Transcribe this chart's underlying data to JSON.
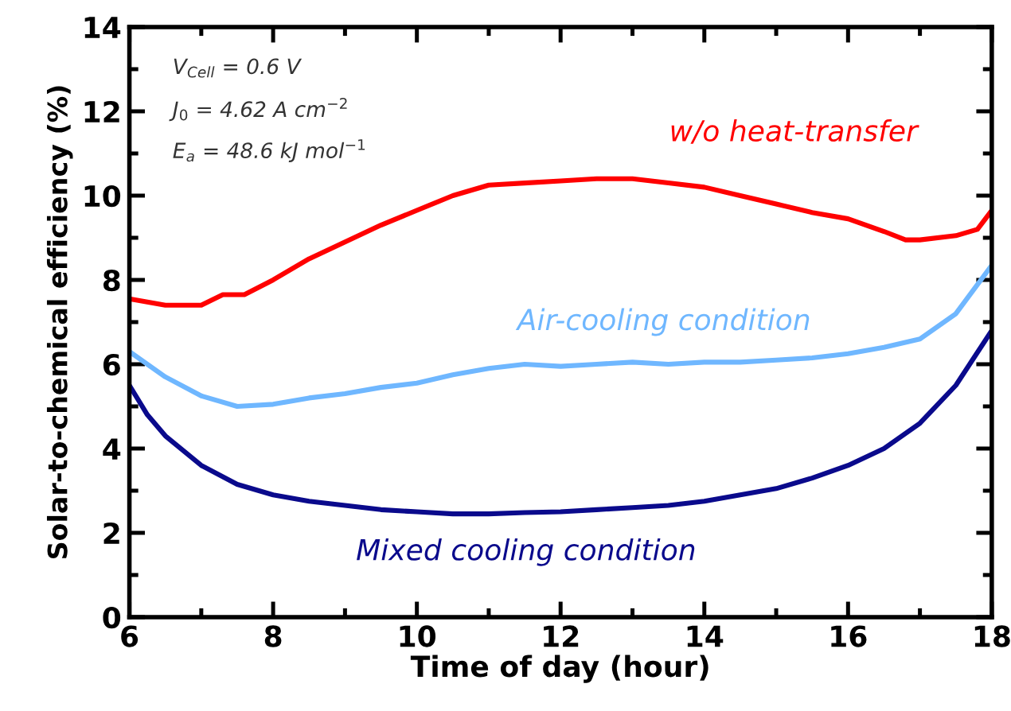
{
  "chart_data": {
    "type": "line",
    "xlabel": "Time of day (hour)",
    "ylabel": "Solar-to-chemical efficiency (%)",
    "annotations": [
      "V$_{Cell}$ = 0.6 V",
      "J$_{0}$ = 4.62 A cm$^{−2}$",
      "E$_{a}$ = 48.6 kJ mol$^{−1}$"
    ],
    "series": [
      {
        "name": "w/o heat-transfer",
        "color": "#ff0000",
        "x": [
          6,
          6.5,
          7,
          7.3,
          7.6,
          8,
          8.5,
          9,
          9.5,
          10,
          10.5,
          11,
          11.5,
          12,
          12.5,
          13,
          13.5,
          14,
          14.5,
          15,
          15.5,
          16,
          16.5,
          16.8,
          17,
          17.5,
          17.8,
          18
        ],
        "values": [
          7.55,
          7.4,
          7.4,
          7.65,
          7.65,
          8.0,
          8.5,
          8.9,
          9.3,
          9.65,
          10.0,
          10.25,
          10.3,
          10.35,
          10.4,
          10.4,
          10.3,
          10.2,
          10.0,
          9.8,
          9.6,
          9.45,
          9.15,
          8.95,
          8.95,
          9.05,
          9.2,
          9.65
        ]
      },
      {
        "name": "Air-cooling condition",
        "color": "#6fb7ff",
        "x": [
          6,
          6.5,
          7,
          7.5,
          8,
          8.5,
          9,
          9.5,
          10,
          10.5,
          11,
          11.5,
          12,
          12.5,
          13,
          13.5,
          14,
          14.5,
          15,
          15.5,
          16,
          16.5,
          17,
          17.5,
          18
        ],
        "values": [
          6.3,
          5.7,
          5.25,
          5.0,
          5.05,
          5.2,
          5.3,
          5.45,
          5.55,
          5.75,
          5.9,
          6.0,
          5.95,
          6.0,
          6.05,
          6.0,
          6.05,
          6.05,
          6.1,
          6.15,
          6.25,
          6.4,
          6.6,
          7.2,
          8.35
        ]
      },
      {
        "name": "Mixed cooling condition",
        "color": "#0a0a8c",
        "x": [
          6,
          6.25,
          6.5,
          7,
          7.5,
          8,
          8.5,
          9,
          9.5,
          10,
          10.5,
          11,
          11.5,
          12,
          12.5,
          13,
          13.5,
          14,
          14.5,
          15,
          15.5,
          16,
          16.5,
          17,
          17.5,
          18
        ],
        "values": [
          5.5,
          4.8,
          4.3,
          3.6,
          3.15,
          2.9,
          2.75,
          2.65,
          2.55,
          2.5,
          2.45,
          2.45,
          2.48,
          2.5,
          2.55,
          2.6,
          2.65,
          2.75,
          2.9,
          3.05,
          3.3,
          3.6,
          4.0,
          4.6,
          5.5,
          6.8
        ]
      }
    ],
    "xlim": [
      6,
      18
    ],
    "xticks": [
      6,
      8,
      10,
      12,
      14,
      16,
      18
    ],
    "ylim": [
      0,
      14
    ],
    "yticks": [
      0,
      2,
      4,
      6,
      8,
      10,
      12,
      14
    ],
    "grid": false,
    "legend": false,
    "marker": "none",
    "line_style": "solid"
  }
}
